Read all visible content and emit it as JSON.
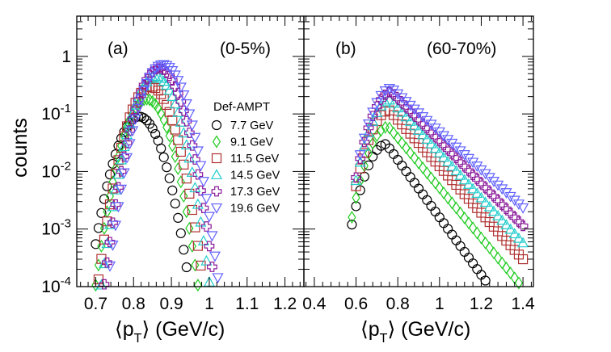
{
  "chart_data": [
    {
      "type": "scatter",
      "panel_label": "(a)",
      "centrality": "(0-5%)",
      "xlabel_main": "⟨p",
      "xlabel_sub": "T",
      "xlabel_tail": "⟩ (GeV/c)",
      "ylabel": "counts",
      "xlim": [
        0.65,
        1.25
      ],
      "ylim": [
        0.0001,
        5
      ],
      "yscale": "log",
      "xticks": [
        0.7,
        0.8,
        0.9,
        1.0,
        1.1,
        1.2
      ],
      "xtick_labels": [
        "0.7",
        "0.8",
        "0.9",
        "1",
        "1.1",
        "1.2"
      ],
      "legend_title": "Def-AMPT",
      "legend_position": "center-right",
      "series": [
        {
          "name": "7.7  GeV",
          "peak_x": 0.815,
          "peak_y": 0.09,
          "sigma": 0.036
        },
        {
          "name": "9.1  GeV",
          "peak_x": 0.835,
          "peak_y": 0.18,
          "sigma": 0.035
        },
        {
          "name": "11.5 GeV",
          "peak_x": 0.845,
          "peak_y": 0.3,
          "sigma": 0.035
        },
        {
          "name": "14.5 GeV",
          "peak_x": 0.858,
          "peak_y": 0.45,
          "sigma": 0.035
        },
        {
          "name": "17.3 GeV",
          "peak_x": 0.868,
          "peak_y": 0.62,
          "sigma": 0.035
        },
        {
          "name": "19.6 GeV",
          "peak_x": 0.878,
          "peak_y": 0.72,
          "sigma": 0.035
        }
      ]
    },
    {
      "type": "scatter",
      "panel_label": "(b)",
      "centrality": "(60-70%)",
      "xlabel_main": "⟨p",
      "xlabel_sub": "T",
      "xlabel_tail": "⟩ (GeV/c)",
      "ylim": [
        0.0001,
        5
      ],
      "yscale": "log",
      "xlim": [
        0.35,
        1.45
      ],
      "xticks": [
        0.4,
        0.6,
        0.8,
        1.0,
        1.2,
        1.4
      ],
      "xtick_labels": [
        "0.4",
        "0.6",
        "0.8",
        "1",
        "1.2",
        "1.4"
      ],
      "series": [
        {
          "name": "7.7 GeV",
          "peak_x": 0.745,
          "peak_y": 0.03,
          "sigma_left": 0.065,
          "slope": 11.5,
          "x_start": 0.58
        },
        {
          "name": "9.1 GeV",
          "peak_x": 0.755,
          "peak_y": 0.06,
          "sigma_left": 0.065,
          "slope": 10.0,
          "x_start": 0.58
        },
        {
          "name": "11.5 GeV",
          "peak_x": 0.76,
          "peak_y": 0.115,
          "sigma_left": 0.065,
          "slope": 9.3,
          "x_start": 0.6
        },
        {
          "name": "14.5 GeV",
          "peak_x": 0.765,
          "peak_y": 0.175,
          "sigma_left": 0.065,
          "slope": 9.0,
          "x_start": 0.6
        },
        {
          "name": "17.3 GeV",
          "peak_x": 0.77,
          "peak_y": 0.24,
          "sigma_left": 0.065,
          "slope": 8.5,
          "x_start": 0.6
        },
        {
          "name": "19.6 GeV",
          "peak_x": 0.77,
          "peak_y": 0.28,
          "sigma_left": 0.065,
          "slope": 7.6,
          "x_start": 0.62
        }
      ]
    }
  ],
  "yticks": [
    0.0001,
    0.001,
    0.01,
    0.1,
    1
  ],
  "colors": {
    "series": [
      "#000000",
      "#22cc22",
      "#b03030",
      "#22cccc",
      "#8a1a9a",
      "#6060ff"
    ],
    "frame": "#000000"
  },
  "markers": [
    "circle",
    "diamond",
    "square",
    "triangle-up",
    "cross",
    "triangle-down"
  ]
}
